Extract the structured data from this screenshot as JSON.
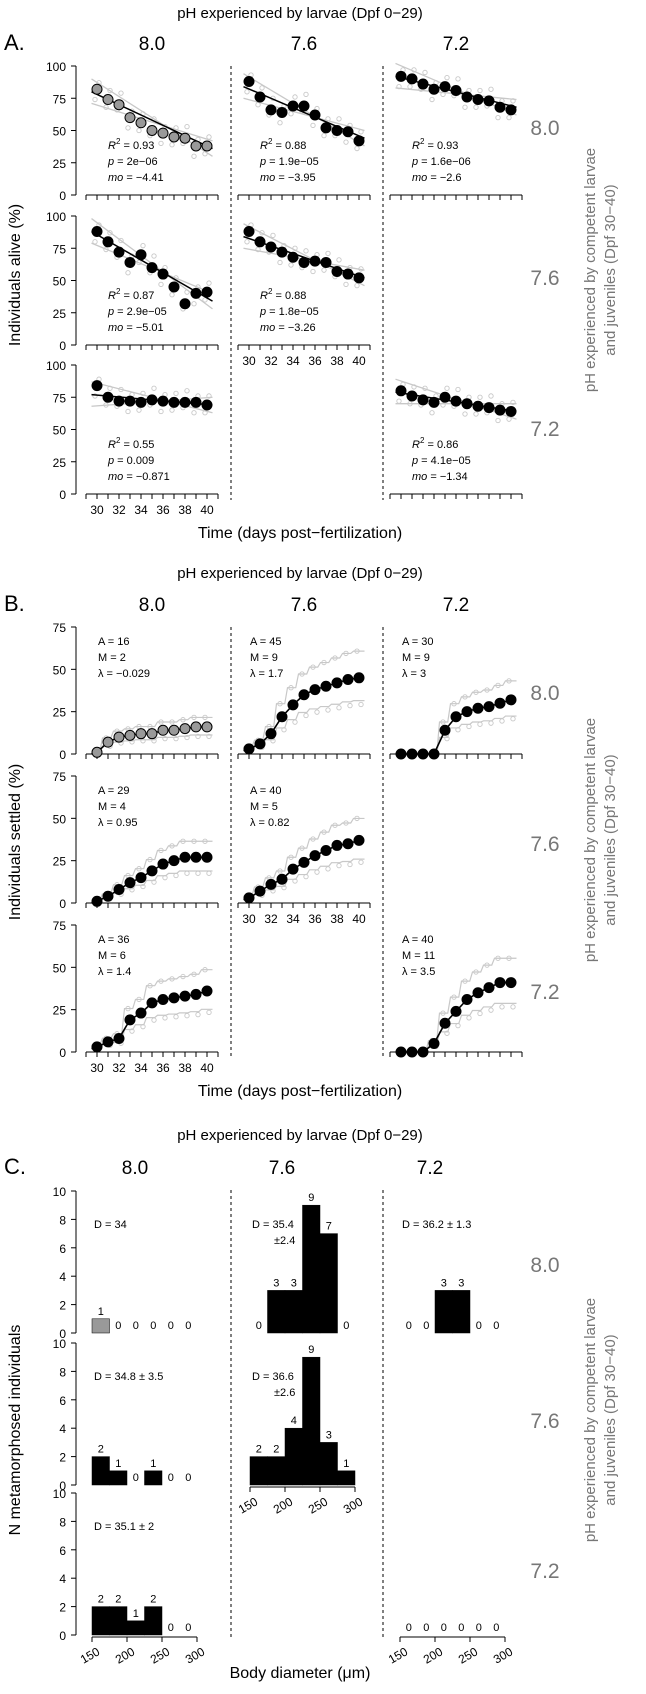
{
  "colors": {
    "black": "#000000",
    "filled_gray": "#999999",
    "light_gray": "#c8c8c8",
    "side_label": "#777777"
  },
  "panels": {
    "A": {
      "letter": "A.",
      "title": "pH experienced by larvae (Dpf 0−29)",
      "col_labels": [
        "8.0",
        "7.6",
        "7.2"
      ],
      "row_labels": [
        "8.0",
        "7.6",
        "7.2"
      ],
      "side_title_1": "pH experienced by competent larvae",
      "side_title_2": "and juveniles (Dpf 30−40)",
      "ylabel": "Individuals alive (%)",
      "xlabel": "Time (days post−fertilization)"
    },
    "B": {
      "letter": "B.",
      "title": "pH experienced by larvae (Dpf 0−29)",
      "col_labels": [
        "8.0",
        "7.6",
        "7.2"
      ],
      "row_labels": [
        "8.0",
        "7.6",
        "7.2"
      ],
      "side_title_1": "pH experienced by competent larvae",
      "side_title_2": "and juveniles (Dpf 30−40)",
      "ylabel": "Individuals settled (%)",
      "xlabel": "Time (days post−fertilization)"
    },
    "C": {
      "letter": "C.",
      "title": "pH experienced by larvae (Dpf 0−29)",
      "col_labels": [
        "8.0",
        "7.6",
        "7.2"
      ],
      "row_labels": [
        "8.0",
        "7.6",
        "7.2"
      ],
      "side_title_1": "pH experienced by competent larvae",
      "side_title_2": "and juveniles (Dpf 30−40)",
      "ylabel": "N metamorphosed individuals",
      "xlabel": "Body diameter (μm)"
    }
  },
  "chart_data": [
    {
      "type": "scatter",
      "panel": "A",
      "x_ticks": [
        30,
        32,
        34,
        36,
        38,
        40
      ],
      "y_ticks": [
        0,
        25,
        50,
        75,
        100
      ],
      "xlim": [
        29,
        41
      ],
      "ylim": [
        0,
        100
      ],
      "grid": false,
      "cells": [
        {
          "row": "8.0",
          "col": "8.0",
          "filled": "gray",
          "x": [
            30,
            31,
            32,
            33,
            34,
            35,
            36,
            37,
            38,
            39,
            40
          ],
          "y": [
            82,
            74,
            70,
            60,
            56,
            50,
            48,
            45,
            44,
            38,
            38
          ],
          "fit": [
            80,
            36
          ],
          "stats": {
            "r2": "0.93",
            "p": "2e−06",
            "mo": "−4.41"
          }
        },
        {
          "row": "8.0",
          "col": "7.6",
          "filled": "black",
          "x": [
            30,
            31,
            32,
            33,
            34,
            35,
            36,
            37,
            38,
            39,
            40
          ],
          "y": [
            88,
            76,
            66,
            64,
            69,
            69,
            62,
            52,
            50,
            49,
            42
          ],
          "fit": [
            84,
            44
          ],
          "stats": {
            "r2": "0.88",
            "p": "1.9e−05",
            "mo": "−3.95"
          }
        },
        {
          "row": "8.0",
          "col": "7.2",
          "filled": "black",
          "x": [
            30,
            31,
            32,
            33,
            34,
            35,
            36,
            37,
            38,
            39,
            40
          ],
          "y": [
            92,
            90,
            86,
            82,
            84,
            81,
            76,
            74,
            73,
            68,
            66
          ],
          "fit": [
            92,
            68
          ],
          "stats": {
            "r2": "0.93",
            "p": "1.6e−06",
            "mo": "−2.6"
          }
        },
        {
          "row": "7.6",
          "col": "8.0",
          "filled": "black",
          "x": [
            30,
            31,
            32,
            33,
            34,
            35,
            36,
            37,
            38,
            39,
            40
          ],
          "y": [
            88,
            80,
            72,
            64,
            70,
            60,
            55,
            45,
            32,
            40,
            41
          ],
          "fit": [
            88,
            34
          ],
          "stats": {
            "r2": "0.87",
            "p": "2.9e−05",
            "mo": "−5.01"
          }
        },
        {
          "row": "7.6",
          "col": "7.6",
          "filled": "black",
          "x": [
            30,
            31,
            32,
            33,
            34,
            35,
            36,
            37,
            38,
            39,
            40
          ],
          "y": [
            88,
            80,
            76,
            72,
            68,
            64,
            65,
            64,
            57,
            55,
            52
          ],
          "fit": [
            84,
            52
          ],
          "stats": {
            "r2": "0.88",
            "p": "1.8e−05",
            "mo": "−3.26"
          }
        },
        {
          "row": "7.2",
          "col": "8.0",
          "filled": "black",
          "x": [
            30,
            31,
            32,
            33,
            34,
            35,
            36,
            37,
            38,
            39,
            40
          ],
          "y": [
            84,
            75,
            72,
            72,
            71,
            73,
            72,
            71,
            71,
            71,
            69
          ],
          "fit": [
            77,
            69
          ],
          "stats": {
            "r2": "0.55",
            "p": "0.009",
            "mo": "−0.871"
          }
        },
        {
          "row": "7.2",
          "col": "7.2",
          "filled": "black",
          "x": [
            30,
            31,
            32,
            33,
            34,
            35,
            36,
            37,
            38,
            39,
            40
          ],
          "y": [
            80,
            76,
            73,
            71,
            75,
            72,
            70,
            68,
            67,
            65,
            64
          ],
          "fit": [
            79,
            64
          ],
          "stats": {
            "r2": "0.86",
            "p": "4.1e−05",
            "mo": "−1.34"
          }
        }
      ]
    },
    {
      "type": "line",
      "panel": "B",
      "x_ticks": [
        30,
        32,
        34,
        36,
        38,
        40
      ],
      "y_ticks": [
        0,
        25,
        50,
        75
      ],
      "xlim": [
        29,
        41
      ],
      "ylim": [
        0,
        75
      ],
      "grid": false,
      "cells": [
        {
          "row": "8.0",
          "col": "8.0",
          "filled": "gray",
          "x": [
            30,
            31,
            32,
            33,
            34,
            35,
            36,
            37,
            38,
            39,
            40
          ],
          "y": [
            1,
            7,
            10,
            11,
            12,
            12,
            14,
            14,
            15,
            16,
            16
          ],
          "params": {
            "A": "16",
            "M": "2",
            "lambda": "−0.029"
          }
        },
        {
          "row": "8.0",
          "col": "7.6",
          "filled": "black",
          "x": [
            30,
            31,
            32,
            33,
            34,
            35,
            36,
            37,
            38,
            39,
            40
          ],
          "y": [
            3,
            6,
            12,
            22,
            29,
            35,
            38,
            40,
            42,
            44,
            45
          ],
          "params": {
            "A": "45",
            "M": "9",
            "lambda": "1.7"
          }
        },
        {
          "row": "8.0",
          "col": "7.2",
          "filled": "black",
          "x": [
            30,
            31,
            32,
            33,
            34,
            35,
            36,
            37,
            38,
            39,
            40
          ],
          "y": [
            0,
            0,
            0,
            0,
            14,
            22,
            25,
            27,
            28,
            30,
            32
          ],
          "params": {
            "A": "30",
            "M": "9",
            "lambda": "3"
          }
        },
        {
          "row": "7.6",
          "col": "8.0",
          "filled": "black",
          "x": [
            30,
            31,
            32,
            33,
            34,
            35,
            36,
            37,
            38,
            39,
            40
          ],
          "y": [
            1,
            4,
            8,
            12,
            15,
            19,
            23,
            25,
            27,
            27,
            27
          ],
          "params": {
            "A": "29",
            "M": "4",
            "lambda": "0.95"
          }
        },
        {
          "row": "7.6",
          "col": "7.6",
          "filled": "black",
          "x": [
            30,
            31,
            32,
            33,
            34,
            35,
            36,
            37,
            38,
            39,
            40
          ],
          "y": [
            3,
            7,
            11,
            14,
            20,
            24,
            28,
            31,
            34,
            35,
            37
          ],
          "params": {
            "A": "40",
            "M": "5",
            "lambda": "0.82"
          }
        },
        {
          "row": "7.2",
          "col": "8.0",
          "filled": "black",
          "x": [
            30,
            31,
            32,
            33,
            34,
            35,
            36,
            37,
            38,
            39,
            40
          ],
          "y": [
            3,
            6,
            8,
            19,
            23,
            29,
            31,
            32,
            33,
            34,
            36
          ],
          "params": {
            "A": "36",
            "M": "6",
            "lambda": "1.4"
          }
        },
        {
          "row": "7.2",
          "col": "7.2",
          "filled": "black",
          "x": [
            30,
            31,
            32,
            33,
            34,
            35,
            36,
            37,
            38,
            39,
            40
          ],
          "y": [
            0,
            0,
            0,
            5,
            17,
            24,
            31,
            35,
            38,
            41,
            41
          ],
          "params": {
            "A": "40",
            "M": "11",
            "lambda": "3.5"
          }
        }
      ]
    },
    {
      "type": "bar",
      "panel": "C",
      "x_ticks": [
        150,
        200,
        250,
        300
      ],
      "y_ticks": [
        0,
        2,
        4,
        6,
        8,
        10
      ],
      "bins": [
        150,
        175,
        200,
        225,
        250,
        275
      ],
      "bin_width": 25,
      "xlim": [
        150,
        300
      ],
      "ylim": [
        0,
        10
      ],
      "grid": false,
      "cells": [
        {
          "row": "8.0",
          "col": "8.0",
          "fill": "gray",
          "counts": [
            1,
            0,
            0,
            0,
            0,
            0
          ],
          "D": "D = 34"
        },
        {
          "row": "8.0",
          "col": "7.6",
          "fill": "black",
          "counts": [
            0,
            3,
            3,
            9,
            7,
            0
          ],
          "D": "D = 35.4",
          "D2": "±2.4"
        },
        {
          "row": "8.0",
          "col": "7.2",
          "fill": "black",
          "counts": [
            0,
            0,
            3,
            3,
            0,
            0
          ],
          "D": "D = 36.2 ± 1.3"
        },
        {
          "row": "7.6",
          "col": "8.0",
          "fill": "black",
          "counts": [
            2,
            1,
            0,
            1,
            0,
            0
          ],
          "D": "D = 34.8 ± 3.5"
        },
        {
          "row": "7.6",
          "col": "7.6",
          "fill": "black",
          "counts": [
            2,
            2,
            4,
            9,
            3,
            1
          ],
          "D": "D = 36.6",
          "D2": "±2.6"
        },
        {
          "row": "7.2",
          "col": "8.0",
          "fill": "black",
          "counts": [
            2,
            2,
            1,
            2,
            0,
            0
          ],
          "D": "D = 35.1 ± 2"
        },
        {
          "row": "7.2",
          "col": "7.2",
          "fill": "black",
          "counts": [
            0,
            0,
            0,
            0,
            0,
            0
          ],
          "D": ""
        }
      ]
    }
  ]
}
